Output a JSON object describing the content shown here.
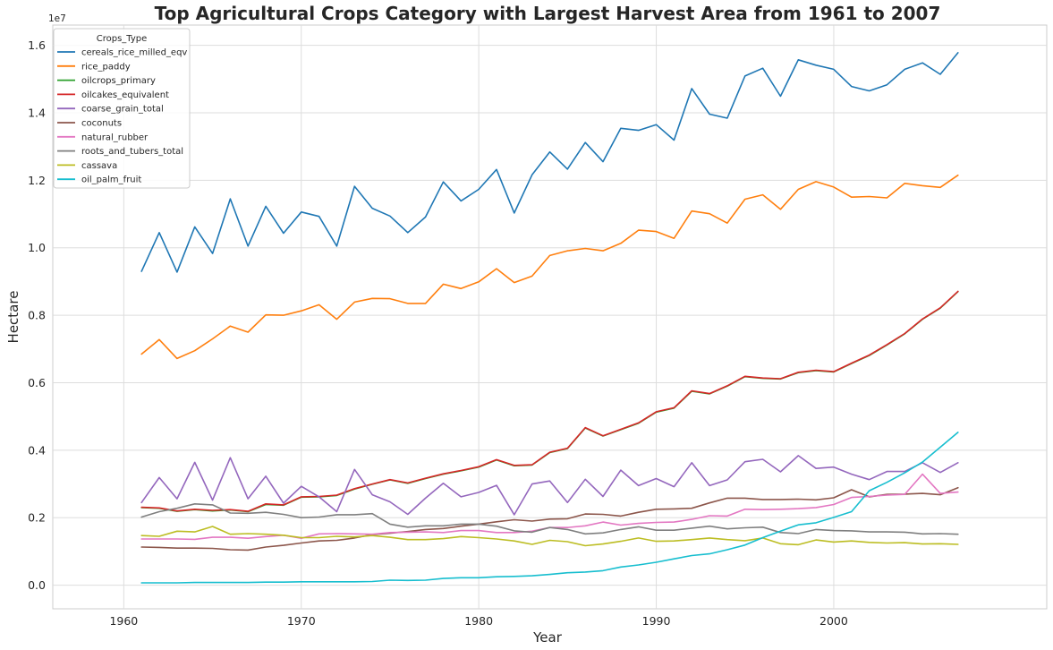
{
  "chart_data": {
    "type": "line",
    "title": "Top Agricultural Crops Category with Largest Harvest Area from 1961 to 2007",
    "xlabel": "Year",
    "ylabel": "Hectare",
    "y_offset_label": "1e7",
    "xlim": [
      1956,
      2012
    ],
    "ylim": [
      -700000,
      16600000
    ],
    "x_ticks": [
      1960,
      1970,
      1980,
      1990,
      2000
    ],
    "x_tick_labels": [
      "1960",
      "1970",
      "1980",
      "1990",
      "2000"
    ],
    "y_ticks": [
      0,
      2000000,
      4000000,
      6000000,
      8000000,
      10000000,
      12000000,
      14000000,
      16000000
    ],
    "y_tick_labels": [
      "0.0",
      "0.2",
      "0.4",
      "0.6",
      "0.8",
      "1.0",
      "1.2",
      "1.4",
      "1.6"
    ],
    "grid": true,
    "legend_title": "Crops_Type",
    "legend_position": "top-left",
    "x": [
      1961,
      1962,
      1963,
      1964,
      1965,
      1966,
      1967,
      1968,
      1969,
      1970,
      1971,
      1972,
      1973,
      1974,
      1975,
      1976,
      1977,
      1978,
      1979,
      1980,
      1981,
      1982,
      1983,
      1984,
      1985,
      1986,
      1987,
      1988,
      1989,
      1990,
      1991,
      1992,
      1993,
      1994,
      1995,
      1996,
      1997,
      1998,
      1999,
      2000,
      2001,
      2002,
      2003,
      2004,
      2005,
      2006,
      2007
    ],
    "series": [
      {
        "name": "cereals_rice_milled_eqv",
        "color": "#1f77b4",
        "values": [
          9300000,
          10450000,
          9280000,
          10620000,
          9830000,
          11450000,
          10050000,
          11230000,
          10430000,
          11060000,
          10930000,
          10050000,
          11820000,
          11170000,
          10940000,
          10450000,
          10910000,
          11950000,
          11390000,
          11730000,
          12320000,
          11030000,
          12160000,
          12840000,
          12330000,
          13120000,
          12550000,
          13540000,
          13480000,
          13650000,
          13190000,
          14720000,
          13960000,
          13840000,
          15090000,
          15320000,
          14490000,
          15570000,
          15410000,
          15290000,
          14780000,
          14650000,
          14830000,
          15290000,
          15480000,
          15140000,
          15780000
        ]
      },
      {
        "name": "rice_paddy",
        "color": "#ff7f0e",
        "values": [
          6850000,
          7280000,
          6720000,
          6950000,
          7300000,
          7680000,
          7500000,
          8010000,
          8000000,
          8130000,
          8310000,
          7880000,
          8390000,
          8500000,
          8490000,
          8350000,
          8350000,
          8920000,
          8790000,
          8990000,
          9380000,
          8970000,
          9160000,
          9770000,
          9910000,
          9980000,
          9910000,
          10130000,
          10520000,
          10480000,
          10280000,
          11090000,
          11010000,
          10730000,
          11440000,
          11570000,
          11140000,
          11730000,
          11960000,
          11800000,
          11500000,
          11520000,
          11480000,
          11910000,
          11840000,
          11790000,
          12150000
        ]
      },
      {
        "name": "oilcrops_primary",
        "color": "#2ca02c",
        "values": [
          2300000,
          2280000,
          2190000,
          2240000,
          2200000,
          2230000,
          2180000,
          2390000,
          2370000,
          2610000,
          2620000,
          2660000,
          2850000,
          2990000,
          3120000,
          3020000,
          3160000,
          3290000,
          3390000,
          3500000,
          3710000,
          3540000,
          3560000,
          3930000,
          4050000,
          4660000,
          4420000,
          4610000,
          4800000,
          5130000,
          5250000,
          5750000,
          5670000,
          5900000,
          6180000,
          6130000,
          6110000,
          6300000,
          6360000,
          6320000,
          6570000,
          6810000,
          7120000,
          7450000,
          7880000,
          8210000,
          8700000
        ]
      },
      {
        "name": "oilcakes_equivalent",
        "color": "#d62728",
        "values": [
          2310000,
          2290000,
          2200000,
          2250000,
          2220000,
          2240000,
          2190000,
          2410000,
          2380000,
          2620000,
          2630000,
          2670000,
          2860000,
          3000000,
          3130000,
          3030000,
          3170000,
          3300000,
          3400000,
          3510000,
          3720000,
          3550000,
          3570000,
          3940000,
          4060000,
          4670000,
          4430000,
          4620000,
          4810000,
          5140000,
          5260000,
          5760000,
          5680000,
          5910000,
          6190000,
          6140000,
          6120000,
          6310000,
          6370000,
          6330000,
          6580000,
          6820000,
          7130000,
          7460000,
          7890000,
          8220000,
          8710000
        ]
      },
      {
        "name": "coarse_grain_total",
        "color": "#9467bd",
        "values": [
          2450000,
          3190000,
          2560000,
          3640000,
          2520000,
          3780000,
          2560000,
          3230000,
          2430000,
          2930000,
          2620000,
          2180000,
          3430000,
          2680000,
          2470000,
          2100000,
          2580000,
          3020000,
          2620000,
          2750000,
          2960000,
          2090000,
          3000000,
          3090000,
          2450000,
          3140000,
          2630000,
          3410000,
          2950000,
          3160000,
          2920000,
          3630000,
          2950000,
          3120000,
          3660000,
          3730000,
          3360000,
          3840000,
          3460000,
          3500000,
          3290000,
          3130000,
          3370000,
          3370000,
          3630000,
          3340000,
          3630000
        ]
      },
      {
        "name": "coconuts",
        "color": "#8c564b",
        "values": [
          1130000,
          1120000,
          1100000,
          1100000,
          1090000,
          1050000,
          1040000,
          1130000,
          1180000,
          1250000,
          1310000,
          1330000,
          1400000,
          1500000,
          1540000,
          1590000,
          1650000,
          1680000,
          1750000,
          1810000,
          1880000,
          1940000,
          1900000,
          1960000,
          1970000,
          2110000,
          2100000,
          2050000,
          2160000,
          2250000,
          2260000,
          2280000,
          2440000,
          2580000,
          2580000,
          2540000,
          2540000,
          2550000,
          2530000,
          2590000,
          2830000,
          2620000,
          2690000,
          2700000,
          2720000,
          2680000,
          2890000
        ]
      },
      {
        "name": "natural_rubber",
        "color": "#e377c2",
        "values": [
          1370000,
          1370000,
          1370000,
          1360000,
          1420000,
          1420000,
          1390000,
          1440000,
          1480000,
          1390000,
          1520000,
          1530000,
          1520000,
          1510000,
          1560000,
          1570000,
          1580000,
          1560000,
          1620000,
          1620000,
          1560000,
          1560000,
          1600000,
          1710000,
          1710000,
          1760000,
          1870000,
          1780000,
          1830000,
          1860000,
          1870000,
          1950000,
          2060000,
          2050000,
          2250000,
          2240000,
          2250000,
          2270000,
          2300000,
          2390000,
          2600000,
          2630000,
          2670000,
          2690000,
          3290000,
          2720000,
          2760000
        ]
      },
      {
        "name": "roots_and_tubers_total",
        "color": "#7f7f7f",
        "values": [
          2020000,
          2180000,
          2280000,
          2410000,
          2380000,
          2140000,
          2130000,
          2160000,
          2100000,
          2000000,
          2020000,
          2090000,
          2090000,
          2120000,
          1810000,
          1720000,
          1760000,
          1760000,
          1810000,
          1810000,
          1750000,
          1610000,
          1570000,
          1710000,
          1650000,
          1520000,
          1550000,
          1650000,
          1730000,
          1630000,
          1630000,
          1690000,
          1750000,
          1670000,
          1700000,
          1720000,
          1560000,
          1530000,
          1650000,
          1620000,
          1610000,
          1580000,
          1580000,
          1570000,
          1520000,
          1530000,
          1510000
        ]
      },
      {
        "name": "cassava",
        "color": "#bcbd22",
        "values": [
          1470000,
          1450000,
          1600000,
          1580000,
          1740000,
          1510000,
          1530000,
          1510000,
          1480000,
          1410000,
          1410000,
          1450000,
          1430000,
          1470000,
          1420000,
          1350000,
          1350000,
          1380000,
          1440000,
          1410000,
          1370000,
          1310000,
          1210000,
          1330000,
          1290000,
          1170000,
          1220000,
          1300000,
          1400000,
          1300000,
          1310000,
          1350000,
          1400000,
          1350000,
          1320000,
          1400000,
          1230000,
          1200000,
          1340000,
          1280000,
          1310000,
          1270000,
          1250000,
          1260000,
          1220000,
          1230000,
          1210000
        ]
      },
      {
        "name": "oil_palm_fruit",
        "color": "#17becf",
        "values": [
          70000,
          70000,
          70000,
          80000,
          80000,
          80000,
          80000,
          90000,
          90000,
          100000,
          100000,
          100000,
          100000,
          110000,
          150000,
          140000,
          150000,
          200000,
          220000,
          220000,
          250000,
          260000,
          280000,
          320000,
          370000,
          390000,
          430000,
          540000,
          600000,
          680000,
          780000,
          880000,
          930000,
          1050000,
          1190000,
          1410000,
          1600000,
          1790000,
          1850000,
          2010000,
          2180000,
          2800000,
          3050000,
          3330000,
          3650000,
          4090000,
          4530000
        ]
      }
    ]
  }
}
